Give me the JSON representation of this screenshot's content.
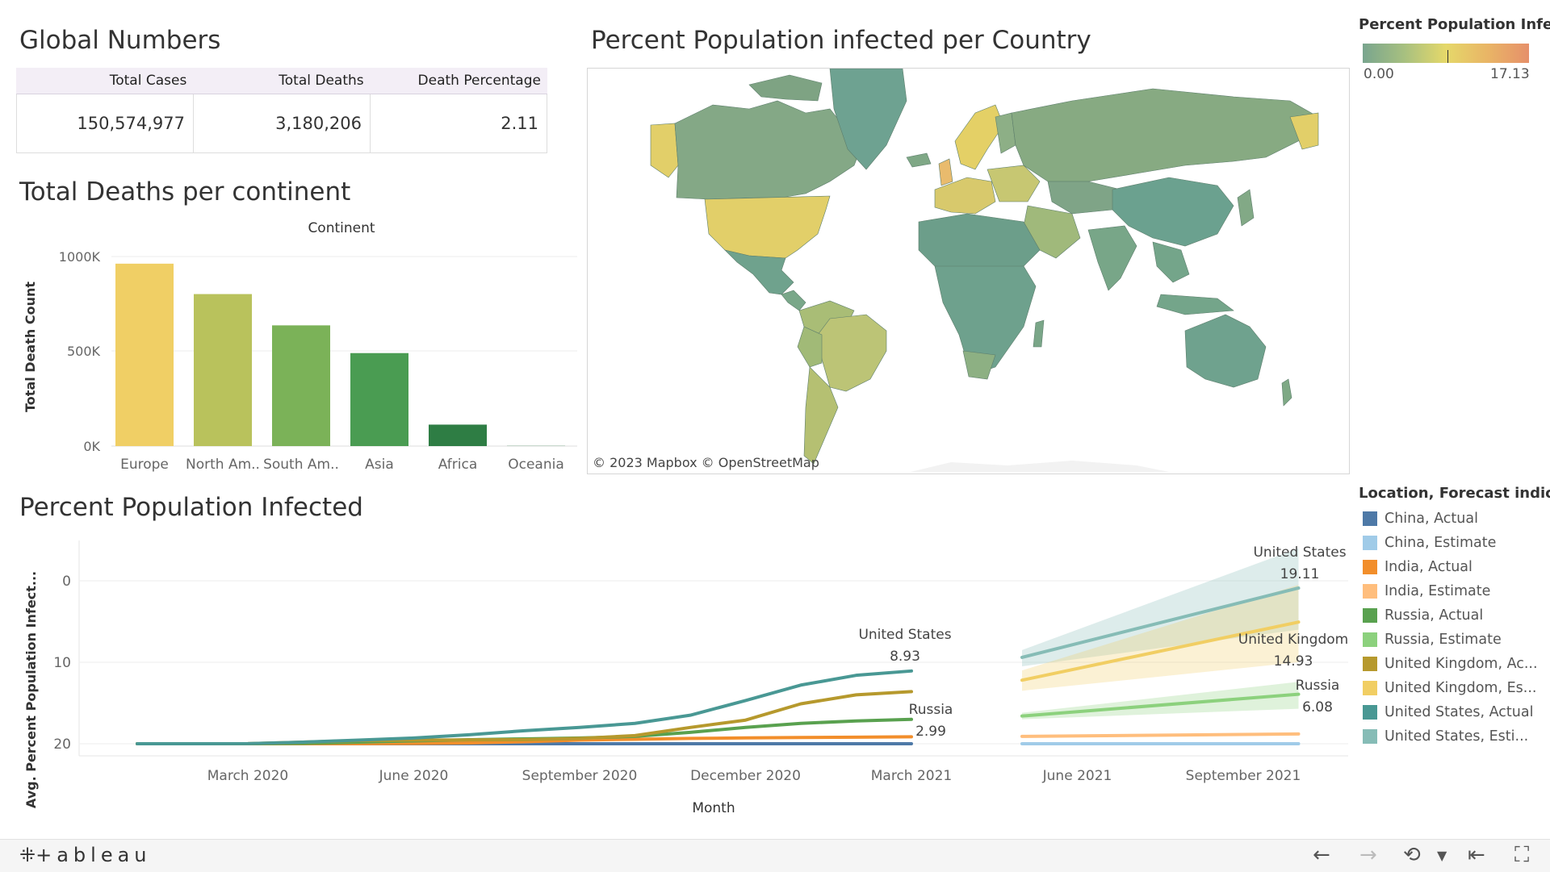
{
  "global_numbers": {
    "title": "Global Numbers",
    "headers": [
      "Total Cases",
      "Total Deaths",
      "Death Percentage"
    ],
    "values": [
      "150,574,977",
      "3,180,206",
      "2.11"
    ]
  },
  "deaths_chart": {
    "title": "Total Deaths per continent",
    "header": "Continent",
    "ylabel": "Total Death Count",
    "yticks": [
      "1000K",
      "500K",
      "0K"
    ]
  },
  "map": {
    "title": "Percent Population infected per Country",
    "credit": "© 2023 Mapbox  © OpenStreetMap"
  },
  "colorbar": {
    "title": "Percent Population Infe...",
    "min": "0.00",
    "max": "17.13"
  },
  "line_chart": {
    "title": "Percent Population Infected",
    "ylabel": "Avg. Percent Population Infect...",
    "xlabel": "Month",
    "yticks": [
      "20",
      "10",
      "0"
    ],
    "xticks": [
      "March 2020",
      "June 2020",
      "September 2020",
      "December 2020",
      "March 2021",
      "June 2021",
      "September 2021"
    ],
    "annotations": [
      {
        "name": "United States",
        "value": "8.93"
      },
      {
        "name": "Russia",
        "value": "2.99"
      },
      {
        "name": "United States",
        "value": "19.11"
      },
      {
        "name": "United Kingdom",
        "value": "14.93"
      },
      {
        "name": "Russia",
        "value": "6.08"
      }
    ]
  },
  "legend": {
    "title": "Location, Forecast indic...",
    "items": [
      {
        "label": "China, Actual",
        "color": "#4e79a7"
      },
      {
        "label": "China, Estimate",
        "color": "#a0cbe8"
      },
      {
        "label": "India, Actual",
        "color": "#f28e2b"
      },
      {
        "label": "India, Estimate",
        "color": "#ffbe7d"
      },
      {
        "label": "Russia, Actual",
        "color": "#59a14f"
      },
      {
        "label": "Russia, Estimate",
        "color": "#8cd17d"
      },
      {
        "label": "United Kingdom, Ac...",
        "color": "#b6992d"
      },
      {
        "label": "United Kingdom, Es...",
        "color": "#f1ce63"
      },
      {
        "label": "United States, Actual",
        "color": "#499894"
      },
      {
        "label": "United States, Esti...",
        "color": "#86bcb6"
      }
    ]
  },
  "footer": {
    "logo": "+ableau"
  },
  "chart_data": [
    {
      "type": "bar",
      "title": "Total Deaths per continent",
      "xlabel": "Continent",
      "ylabel": "Total Death Count",
      "categories": [
        "Europe",
        "North Am..",
        "South Am..",
        "Asia",
        "Africa",
        "Oceania"
      ],
      "values": [
        1020000,
        850000,
        675000,
        520000,
        120000,
        1000
      ],
      "colors": [
        "#f0cf65",
        "#b9c25c",
        "#7bb258",
        "#4a9c52",
        "#2e7d44",
        "#2e7d44"
      ],
      "ylim": [
        0,
        1060000
      ]
    },
    {
      "type": "line",
      "title": "Percent Population Infected",
      "xlabel": "Month",
      "ylabel": "Avg. Percent Population Infect...",
      "x": [
        "2020-01",
        "2020-02",
        "2020-03",
        "2020-04",
        "2020-05",
        "2020-06",
        "2020-07",
        "2020-08",
        "2020-09",
        "2020-10",
        "2020-11",
        "2020-12",
        "2021-01",
        "2021-02",
        "2021-03",
        "2021-04"
      ],
      "series": [
        {
          "name": "United States, Actual",
          "color": "#499894",
          "values": [
            0,
            0,
            0.01,
            0.2,
            0.45,
            0.7,
            1.1,
            1.6,
            2.0,
            2.5,
            3.5,
            5.3,
            7.2,
            8.4,
            8.93,
            null
          ]
        },
        {
          "name": "United Kingdom, Ac...",
          "color": "#b6992d",
          "values": [
            0,
            0,
            0.01,
            0.2,
            0.4,
            0.45,
            0.47,
            0.5,
            0.65,
            1.0,
            2.0,
            2.9,
            4.9,
            6.0,
            6.4,
            null
          ]
        },
        {
          "name": "Russia, Actual",
          "color": "#59a14f",
          "values": [
            0,
            0,
            0,
            0.05,
            0.2,
            0.35,
            0.5,
            0.6,
            0.7,
            0.9,
            1.4,
            2.0,
            2.5,
            2.8,
            2.99,
            null
          ]
        },
        {
          "name": "India, Actual",
          "color": "#f28e2b",
          "values": [
            0,
            0,
            0,
            0,
            0.01,
            0.04,
            0.1,
            0.25,
            0.45,
            0.55,
            0.65,
            0.72,
            0.77,
            0.8,
            0.85,
            null
          ]
        },
        {
          "name": "China, Actual",
          "color": "#4e79a7",
          "values": [
            0,
            0.005,
            0.006,
            0.006,
            0.006,
            0.006,
            0.006,
            0.006,
            0.006,
            0.006,
            0.006,
            0.006,
            0.006,
            0.006,
            0.006,
            null
          ]
        }
      ],
      "forecast": {
        "x": [
          "2021-05",
          "2021-10"
        ],
        "series": [
          {
            "name": "United States, Esti...",
            "color": "#86bcb6",
            "values": [
              10.6,
              19.11
            ],
            "lower": [
              9.5,
              14.0
            ],
            "upper": [
              11.5,
              24.0
            ]
          },
          {
            "name": "United Kingdom, Es...",
            "color": "#f1ce63",
            "values": [
              7.8,
              14.93
            ],
            "lower": [
              6.5,
              10.0
            ],
            "upper": [
              9.0,
              19.5
            ]
          },
          {
            "name": "Russia, Estimate",
            "color": "#8cd17d",
            "values": [
              3.4,
              6.08
            ],
            "lower": [
              3.0,
              4.3
            ],
            "upper": [
              3.8,
              7.6
            ]
          },
          {
            "name": "India, Estimate",
            "color": "#ffbe7d",
            "values": [
              0.9,
              1.2
            ],
            "lower": [
              0.8,
              1.0
            ],
            "upper": [
              1.0,
              1.4
            ]
          },
          {
            "name": "China, Estimate",
            "color": "#a0cbe8",
            "values": [
              0.006,
              0.006
            ],
            "lower": [
              0.005,
              0.005
            ],
            "upper": [
              0.007,
              0.007
            ]
          }
        ]
      },
      "ylim": [
        -1.5,
        26
      ]
    }
  ]
}
